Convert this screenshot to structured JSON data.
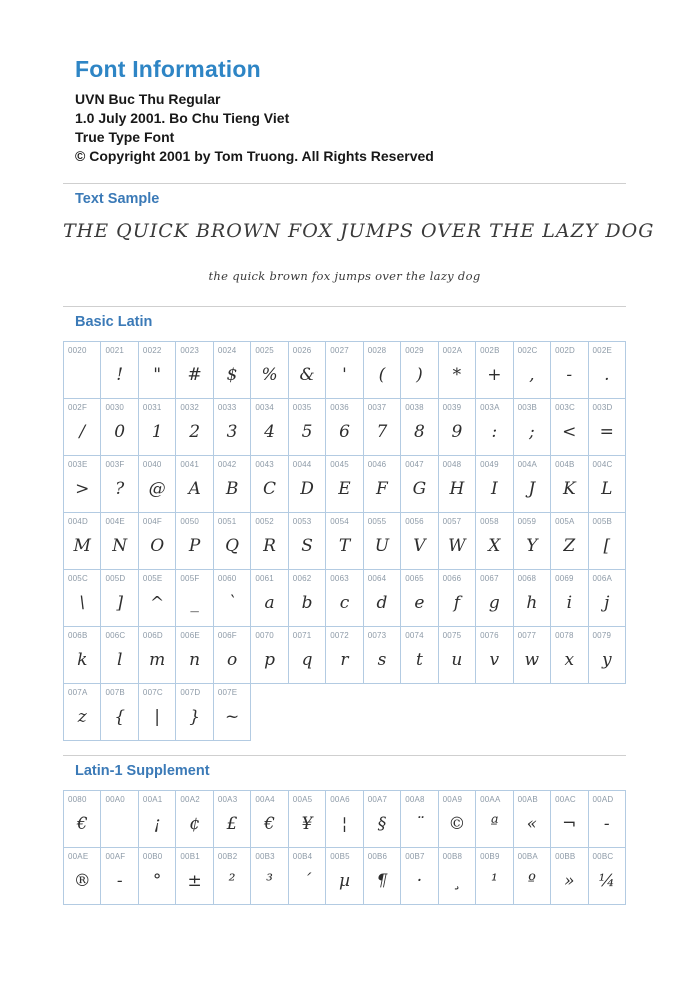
{
  "page": {
    "title": "Font Information",
    "info_lines": [
      "UVN Buc Thu Regular",
      "1.0 July 2001. Bo Chu Tieng Viet",
      "True Type Font",
      "© Copyright 2001 by Tom Truong. All Rights Reserved"
    ]
  },
  "colors": {
    "title_blue": "#2e85c5",
    "section_heading_blue": "#3b7ab7",
    "grid_border": "#b3cbe2",
    "code_label": "#8d9aa7",
    "rule": "#cfcfcf"
  },
  "text_sample": {
    "heading": "Text Sample",
    "uppercase": "THE QUICK BROWN FOX JUMPS OVER THE LAZY DOG",
    "lowercase": "the quick brown fox jumps over the lazy dog"
  },
  "sections": [
    {
      "heading": "Basic Latin",
      "cells": [
        {
          "code": "0020",
          "glyph": ""
        },
        {
          "code": "0021",
          "glyph": "!"
        },
        {
          "code": "0022",
          "glyph": "\""
        },
        {
          "code": "0023",
          "glyph": "#"
        },
        {
          "code": "0024",
          "glyph": "$"
        },
        {
          "code": "0025",
          "glyph": "%"
        },
        {
          "code": "0026",
          "glyph": "&"
        },
        {
          "code": "0027",
          "glyph": "'"
        },
        {
          "code": "0028",
          "glyph": "("
        },
        {
          "code": "0029",
          "glyph": ")"
        },
        {
          "code": "002A",
          "glyph": "*"
        },
        {
          "code": "002B",
          "glyph": "+"
        },
        {
          "code": "002C",
          "glyph": ","
        },
        {
          "code": "002D",
          "glyph": "-"
        },
        {
          "code": "002E",
          "glyph": "."
        },
        {
          "code": "002F",
          "glyph": "/"
        },
        {
          "code": "0030",
          "glyph": "0"
        },
        {
          "code": "0031",
          "glyph": "1"
        },
        {
          "code": "0032",
          "glyph": "2"
        },
        {
          "code": "0033",
          "glyph": "3"
        },
        {
          "code": "0034",
          "glyph": "4"
        },
        {
          "code": "0035",
          "glyph": "5"
        },
        {
          "code": "0036",
          "glyph": "6"
        },
        {
          "code": "0037",
          "glyph": "7"
        },
        {
          "code": "0038",
          "glyph": "8"
        },
        {
          "code": "0039",
          "glyph": "9"
        },
        {
          "code": "003A",
          "glyph": ":"
        },
        {
          "code": "003B",
          "glyph": ";"
        },
        {
          "code": "003C",
          "glyph": "<"
        },
        {
          "code": "003D",
          "glyph": "="
        },
        {
          "code": "003E",
          "glyph": ">"
        },
        {
          "code": "003F",
          "glyph": "?"
        },
        {
          "code": "0040",
          "glyph": "@"
        },
        {
          "code": "0041",
          "glyph": "A"
        },
        {
          "code": "0042",
          "glyph": "B"
        },
        {
          "code": "0043",
          "glyph": "C"
        },
        {
          "code": "0044",
          "glyph": "D"
        },
        {
          "code": "0045",
          "glyph": "E"
        },
        {
          "code": "0046",
          "glyph": "F"
        },
        {
          "code": "0047",
          "glyph": "G"
        },
        {
          "code": "0048",
          "glyph": "H"
        },
        {
          "code": "0049",
          "glyph": "I"
        },
        {
          "code": "004A",
          "glyph": "J"
        },
        {
          "code": "004B",
          "glyph": "K"
        },
        {
          "code": "004C",
          "glyph": "L"
        },
        {
          "code": "004D",
          "glyph": "M"
        },
        {
          "code": "004E",
          "glyph": "N"
        },
        {
          "code": "004F",
          "glyph": "O"
        },
        {
          "code": "0050",
          "glyph": "P"
        },
        {
          "code": "0051",
          "glyph": "Q"
        },
        {
          "code": "0052",
          "glyph": "R"
        },
        {
          "code": "0053",
          "glyph": "S"
        },
        {
          "code": "0054",
          "glyph": "T"
        },
        {
          "code": "0055",
          "glyph": "U"
        },
        {
          "code": "0056",
          "glyph": "V"
        },
        {
          "code": "0057",
          "glyph": "W"
        },
        {
          "code": "0058",
          "glyph": "X"
        },
        {
          "code": "0059",
          "glyph": "Y"
        },
        {
          "code": "005A",
          "glyph": "Z"
        },
        {
          "code": "005B",
          "glyph": "["
        },
        {
          "code": "005C",
          "glyph": "\\"
        },
        {
          "code": "005D",
          "glyph": "]"
        },
        {
          "code": "005E",
          "glyph": "^"
        },
        {
          "code": "005F",
          "glyph": "_"
        },
        {
          "code": "0060",
          "glyph": "`"
        },
        {
          "code": "0061",
          "glyph": "a"
        },
        {
          "code": "0062",
          "glyph": "b"
        },
        {
          "code": "0063",
          "glyph": "c"
        },
        {
          "code": "0064",
          "glyph": "d"
        },
        {
          "code": "0065",
          "glyph": "e"
        },
        {
          "code": "0066",
          "glyph": "f"
        },
        {
          "code": "0067",
          "glyph": "g"
        },
        {
          "code": "0068",
          "glyph": "h"
        },
        {
          "code": "0069",
          "glyph": "i"
        },
        {
          "code": "006A",
          "glyph": "j"
        },
        {
          "code": "006B",
          "glyph": "k"
        },
        {
          "code": "006C",
          "glyph": "l"
        },
        {
          "code": "006D",
          "glyph": "m"
        },
        {
          "code": "006E",
          "glyph": "n"
        },
        {
          "code": "006F",
          "glyph": "o"
        },
        {
          "code": "0070",
          "glyph": "p"
        },
        {
          "code": "0071",
          "glyph": "q"
        },
        {
          "code": "0072",
          "glyph": "r"
        },
        {
          "code": "0073",
          "glyph": "s"
        },
        {
          "code": "0074",
          "glyph": "t"
        },
        {
          "code": "0075",
          "glyph": "u"
        },
        {
          "code": "0076",
          "glyph": "v"
        },
        {
          "code": "0077",
          "glyph": "w"
        },
        {
          "code": "0078",
          "glyph": "x"
        },
        {
          "code": "0079",
          "glyph": "y"
        },
        {
          "code": "007A",
          "glyph": "z"
        },
        {
          "code": "007B",
          "glyph": "{"
        },
        {
          "code": "007C",
          "glyph": "|"
        },
        {
          "code": "007D",
          "glyph": "}"
        },
        {
          "code": "007E",
          "glyph": "~"
        }
      ]
    },
    {
      "heading": "Latin-1 Supplement",
      "cells": [
        {
          "code": "0080",
          "glyph": "€"
        },
        {
          "code": "00A0",
          "glyph": ""
        },
        {
          "code": "00A1",
          "glyph": "¡"
        },
        {
          "code": "00A2",
          "glyph": "¢"
        },
        {
          "code": "00A3",
          "glyph": "£"
        },
        {
          "code": "00A4",
          "glyph": "€"
        },
        {
          "code": "00A5",
          "glyph": "¥"
        },
        {
          "code": "00A6",
          "glyph": "¦"
        },
        {
          "code": "00A7",
          "glyph": "§"
        },
        {
          "code": "00A8",
          "glyph": "¨"
        },
        {
          "code": "00A9",
          "glyph": "©"
        },
        {
          "code": "00AA",
          "glyph": "ª"
        },
        {
          "code": "00AB",
          "glyph": "«"
        },
        {
          "code": "00AC",
          "glyph": "¬"
        },
        {
          "code": "00AD",
          "glyph": "-"
        },
        {
          "code": "00AE",
          "glyph": "®"
        },
        {
          "code": "00AF",
          "glyph": "-"
        },
        {
          "code": "00B0",
          "glyph": "°"
        },
        {
          "code": "00B1",
          "glyph": "±"
        },
        {
          "code": "00B2",
          "glyph": "²"
        },
        {
          "code": "00B3",
          "glyph": "³"
        },
        {
          "code": "00B4",
          "glyph": "´"
        },
        {
          "code": "00B5",
          "glyph": "µ"
        },
        {
          "code": "00B6",
          "glyph": "¶"
        },
        {
          "code": "00B7",
          "glyph": "·"
        },
        {
          "code": "00B8",
          "glyph": "¸"
        },
        {
          "code": "00B9",
          "glyph": "¹"
        },
        {
          "code": "00BA",
          "glyph": "º"
        },
        {
          "code": "00BB",
          "glyph": "»"
        },
        {
          "code": "00BC",
          "glyph": "¼"
        }
      ]
    }
  ]
}
